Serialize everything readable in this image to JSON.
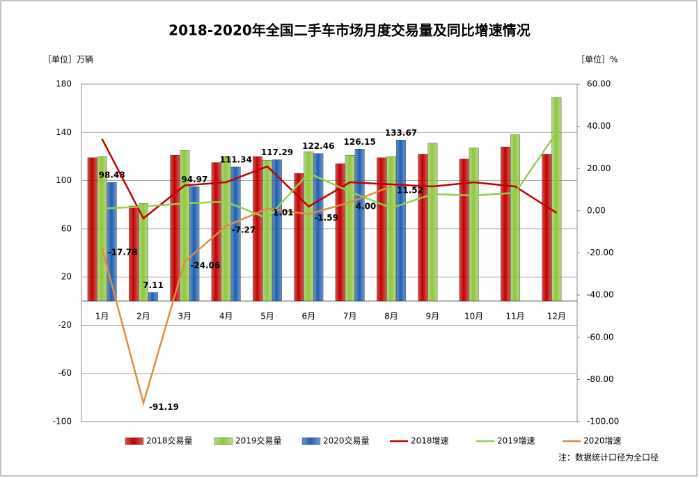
{
  "chart_data": {
    "type": "bar",
    "title": "2018-2020年全国二手车市场月度交易量及同比增速情况",
    "y_unit": "［单位］万辆",
    "y2_unit": "［单位］%",
    "note": "注：数据统计口径为全口径",
    "categories": [
      "1月",
      "2月",
      "3月",
      "4月",
      "5月",
      "6月",
      "7月",
      "8月",
      "9月",
      "10月",
      "11月",
      "12月"
    ],
    "ylim": [
      -100,
      180
    ],
    "yticks": [
      -100,
      -60,
      -20,
      20,
      60,
      100,
      140,
      180
    ],
    "y2lim": [
      -100,
      60
    ],
    "y2ticks": [
      {
        "value": -100,
        "label": "-100.00"
      },
      {
        "value": -80,
        "label": "-80.00"
      },
      {
        "value": -60,
        "label": "-60.00"
      },
      {
        "value": -40,
        "label": "-40.00"
      },
      {
        "value": -20,
        "label": "-20.00"
      },
      {
        "value": 0,
        "label": "0.00"
      },
      {
        "value": 20,
        "label": "20.00"
      },
      {
        "value": 40,
        "label": "40.00"
      },
      {
        "value": 60,
        "label": "60.00"
      }
    ],
    "grid": true,
    "legend": "bottom",
    "series": [
      {
        "name": "2018交易量",
        "type": "bar",
        "color": "#c00000",
        "values": [
          119,
          79,
          121,
          115,
          120,
          106,
          114,
          119,
          122,
          118,
          128,
          122
        ]
      },
      {
        "name": "2019交易量",
        "type": "bar",
        "color": "#8fc640",
        "values": [
          120,
          81,
          125,
          120,
          117,
          124,
          121,
          120,
          131,
          127,
          138,
          169
        ]
      },
      {
        "name": "2020交易量",
        "type": "bar",
        "color": "#1f5fb0",
        "label_color": "#1f1fcc",
        "values": [
          98.48,
          7.11,
          94.97,
          111.34,
          117.29,
          122.46,
          126.15,
          133.67,
          null,
          null,
          null,
          null
        ]
      },
      {
        "name": "2018增速",
        "type": "line",
        "axis": "y2",
        "color": "#c00000",
        "values": [
          34,
          -3.6,
          12,
          13.5,
          21,
          2,
          13.5,
          12.5,
          11.5,
          13.5,
          11.5,
          -1
        ]
      },
      {
        "name": "2019增速",
        "type": "line",
        "axis": "y2",
        "color": "#92d050",
        "values": [
          1,
          2,
          3.5,
          4.3,
          -3.6,
          17.8,
          9,
          1.3,
          7.9,
          7.2,
          8.5,
          37
        ]
      },
      {
        "name": "2020增速",
        "type": "line",
        "axis": "y2",
        "color": "#e08c46",
        "label_color": "#1fa8e0",
        "values": [
          -17.78,
          -91.19,
          -24.06,
          -7.27,
          1.01,
          -1.59,
          4.0,
          11.52,
          null,
          null,
          null,
          null
        ],
        "value_labels": [
          "-17.78",
          "-91.19",
          "-24.06",
          "-7.27",
          "1.01",
          "-1.59",
          "4.00",
          "11.52",
          null,
          null,
          null,
          null
        ]
      }
    ]
  }
}
